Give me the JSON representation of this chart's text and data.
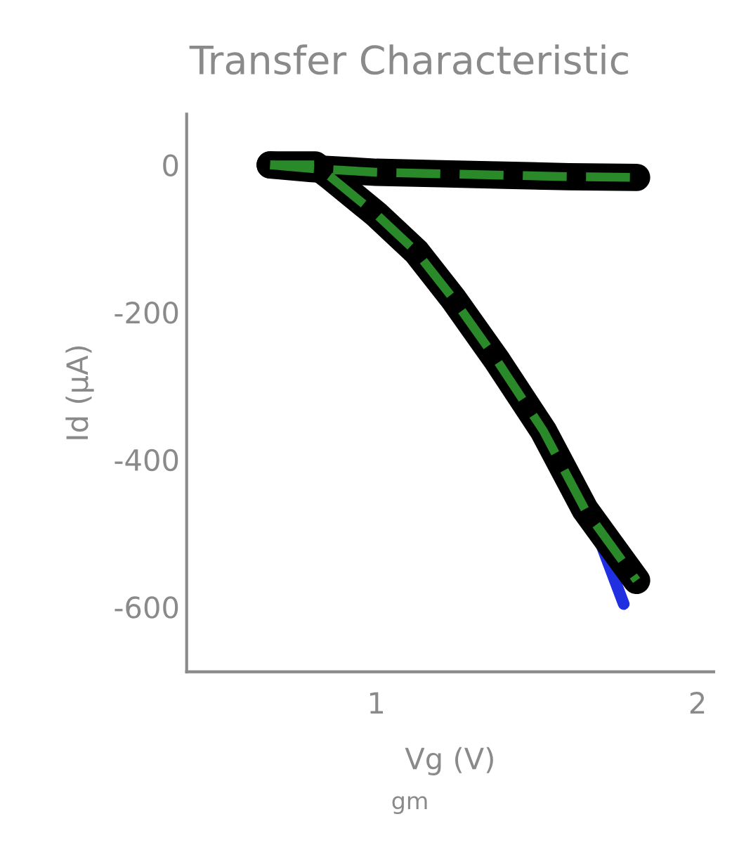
{
  "chart_data": {
    "type": "line",
    "title": "Transfer Characteristic",
    "xlabel": "Vg (V)",
    "ylabel": "Id (μA)",
    "annotations": [
      "gm"
    ],
    "xlim": [
      0.41,
      2.05
    ],
    "xticks": [
      1,
      2
    ],
    "ylim": [
      -688,
      69
    ],
    "yticks": [
      -600,
      -400,
      -200,
      0
    ],
    "grid": false,
    "legend": false,
    "series": [
      {
        "color": "#2030e0",
        "line_style": "solid",
        "x": [
          1.62,
          1.7,
          1.77
        ],
        "values": [
          -450,
          -515,
          -596
        ]
      },
      {
        "color": "#000000",
        "line_style": "solid",
        "x": [
          0.67,
          0.8,
          1.0,
          1.2,
          1.4,
          1.6,
          1.81
        ],
        "values": [
          0,
          -5,
          -10,
          -12,
          -14,
          -16,
          -17
        ]
      },
      {
        "color": "#000000",
        "line_style": "solid",
        "x": [
          0.67,
          0.81,
          0.86,
          1.0,
          1.125,
          1.24,
          1.375,
          1.52,
          1.65,
          1.81
        ],
        "values": [
          0,
          0,
          -17,
          -67,
          -118,
          -182,
          -265,
          -361,
          -468,
          -564
        ]
      },
      {
        "color": "#2a8a2a",
        "line_style": "dashed",
        "x": [
          0.67,
          0.8,
          1.0,
          1.2,
          1.4,
          1.6,
          1.81
        ],
        "values": [
          0,
          -5,
          -10,
          -12,
          -14,
          -16,
          -17
        ]
      },
      {
        "color": "#2a8a2a",
        "line_style": "dashed",
        "x": [
          0.67,
          0.81,
          0.86,
          1.0,
          1.125,
          1.24,
          1.375,
          1.52,
          1.65,
          1.81
        ],
        "values": [
          0,
          0,
          -17,
          -67,
          -118,
          -182,
          -265,
          -361,
          -468,
          -564
        ]
      }
    ]
  }
}
